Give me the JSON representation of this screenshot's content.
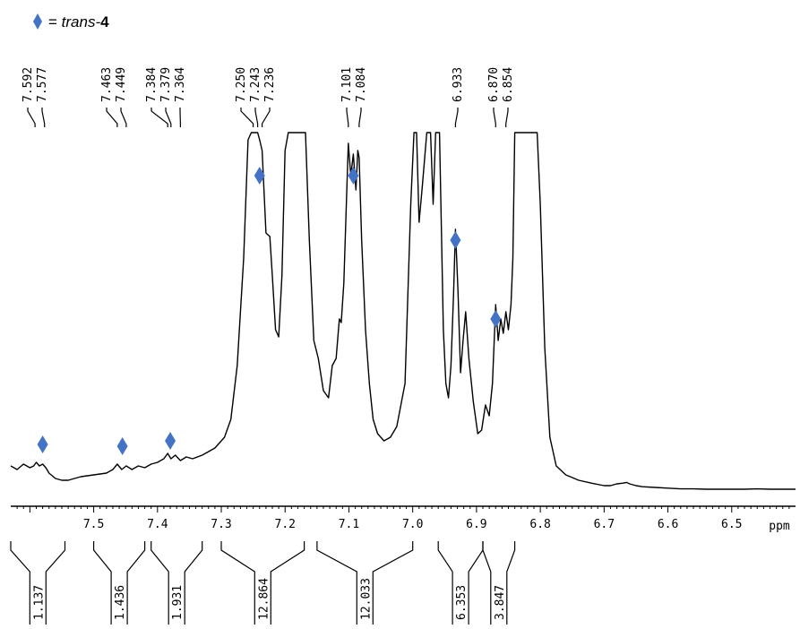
{
  "legend": {
    "marker_color": "#4472C4",
    "prefix": "= ",
    "italic": "trans-",
    "bold": "4"
  },
  "chart_data": {
    "type": "line",
    "x_unit": "ppm",
    "x_reversed": true,
    "xlim": [
      7.63,
      6.4
    ],
    "x_ticks": [
      7.5,
      7.4,
      7.3,
      7.2,
      7.1,
      7.0,
      6.9,
      6.8,
      6.7,
      6.6,
      6.5
    ],
    "x_tick_labels": [
      "7.5",
      "7.4",
      "7.3",
      "7.2",
      "7.1",
      "7.0",
      "6.9",
      "6.8",
      "6.7",
      "6.6",
      "6.5"
    ],
    "peak_labels": [
      "7.592",
      "7.577",
      "7.463",
      "7.449",
      "7.384",
      "7.379",
      "7.364",
      "7.250",
      "7.243",
      "7.236",
      "7.101",
      "7.084",
      "6.933",
      "6.870",
      "6.854"
    ],
    "integrals": [
      {
        "from": 7.63,
        "to": 7.545,
        "value": "1.137"
      },
      {
        "from": 7.5,
        "to": 7.42,
        "value": "1.436"
      },
      {
        "from": 7.41,
        "to": 7.33,
        "value": "1.931"
      },
      {
        "from": 7.3,
        "to": 7.17,
        "value": "12.864"
      },
      {
        "from": 7.15,
        "to": 7.0,
        "value": "12.033"
      },
      {
        "from": 6.96,
        "to": 6.89,
        "value": "6.353"
      },
      {
        "from": 6.89,
        "to": 6.84,
        "value": "3.847"
      }
    ],
    "trans4_markers": [
      {
        "x": 7.58,
        "y": 0.13
      },
      {
        "x": 7.455,
        "y": 0.125
      },
      {
        "x": 7.38,
        "y": 0.14
      },
      {
        "x": 7.24,
        "y": 0.88
      },
      {
        "x": 7.093,
        "y": 0.88
      },
      {
        "x": 6.933,
        "y": 0.7
      },
      {
        "x": 6.87,
        "y": 0.48
      }
    ],
    "spectrum": {
      "x": [
        7.63,
        7.62,
        7.61,
        7.6,
        7.594,
        7.59,
        7.585,
        7.58,
        7.575,
        7.57,
        7.56,
        7.55,
        7.54,
        7.53,
        7.52,
        7.5,
        7.48,
        7.47,
        7.463,
        7.456,
        7.449,
        7.44,
        7.43,
        7.42,
        7.41,
        7.4,
        7.39,
        7.384,
        7.379,
        7.372,
        7.364,
        7.355,
        7.345,
        7.33,
        7.31,
        7.295,
        7.285,
        7.275,
        7.265,
        7.258,
        7.253,
        7.25,
        7.246,
        7.243,
        7.24,
        7.236,
        7.23,
        7.224,
        7.22,
        7.215,
        7.21,
        7.205,
        7.2,
        7.195,
        7.185,
        7.175,
        7.168,
        7.162,
        7.155,
        7.148,
        7.14,
        7.132,
        7.126,
        7.12,
        7.115,
        7.112,
        7.108,
        7.104,
        7.101,
        7.097,
        7.093,
        7.089,
        7.086,
        7.084,
        7.08,
        7.074,
        7.068,
        7.062,
        7.055,
        7.045,
        7.035,
        7.025,
        7.012,
        7.003,
        6.998,
        6.994,
        6.99,
        6.985,
        6.978,
        6.972,
        6.968,
        6.964,
        6.958,
        6.952,
        6.948,
        6.944,
        6.94,
        6.936,
        6.933,
        6.929,
        6.925,
        6.921,
        6.917,
        6.912,
        6.905,
        6.898,
        6.892,
        6.886,
        6.88,
        6.875,
        6.87,
        6.866,
        6.862,
        6.858,
        6.854,
        6.85,
        6.846,
        6.843,
        6.84,
        6.836,
        6.83,
        6.825,
        6.82,
        6.815,
        6.81,
        6.805,
        6.8,
        6.793,
        6.785,
        6.775,
        6.76,
        6.74,
        6.72,
        6.7,
        6.69,
        6.68,
        6.67,
        6.665,
        6.66,
        6.65,
        6.64,
        6.62,
        6.6,
        6.58,
        6.56,
        6.54,
        6.52,
        6.5,
        6.48,
        6.46,
        6.44,
        6.42,
        6.4
      ],
      "y": [
        0.07,
        0.06,
        0.075,
        0.065,
        0.07,
        0.08,
        0.07,
        0.075,
        0.065,
        0.05,
        0.035,
        0.03,
        0.03,
        0.035,
        0.04,
        0.045,
        0.05,
        0.06,
        0.075,
        0.06,
        0.07,
        0.06,
        0.07,
        0.065,
        0.075,
        0.08,
        0.09,
        0.105,
        0.09,
        0.1,
        0.085,
        0.095,
        0.09,
        0.1,
        0.12,
        0.15,
        0.2,
        0.35,
        0.65,
        0.98,
        1.0,
        1.0,
        1.0,
        1.0,
        0.98,
        0.95,
        0.72,
        0.71,
        0.6,
        0.45,
        0.43,
        0.6,
        0.95,
        1.0,
        1.0,
        1.0,
        1.0,
        0.7,
        0.42,
        0.37,
        0.28,
        0.26,
        0.35,
        0.37,
        0.48,
        0.47,
        0.58,
        0.8,
        0.97,
        0.88,
        0.94,
        0.84,
        0.95,
        0.93,
        0.7,
        0.45,
        0.3,
        0.2,
        0.16,
        0.14,
        0.15,
        0.18,
        0.3,
        0.8,
        1.0,
        1.0,
        0.75,
        0.85,
        1.0,
        1.0,
        0.8,
        1.0,
        1.0,
        0.45,
        0.3,
        0.26,
        0.35,
        0.55,
        0.73,
        0.56,
        0.33,
        0.42,
        0.5,
        0.37,
        0.25,
        0.16,
        0.17,
        0.24,
        0.21,
        0.3,
        0.52,
        0.42,
        0.48,
        0.44,
        0.5,
        0.45,
        0.52,
        0.65,
        1.0,
        1.0,
        1.0,
        1.0,
        1.0,
        1.0,
        1.0,
        1.0,
        0.8,
        0.4,
        0.15,
        0.07,
        0.045,
        0.03,
        0.022,
        0.015,
        0.015,
        0.02,
        0.022,
        0.024,
        0.02,
        0.015,
        0.012,
        0.01,
        0.008,
        0.006,
        0.006,
        0.005,
        0.005,
        0.005,
        0.005,
        0.006,
        0.005,
        0.005,
        0.005
      ]
    }
  }
}
